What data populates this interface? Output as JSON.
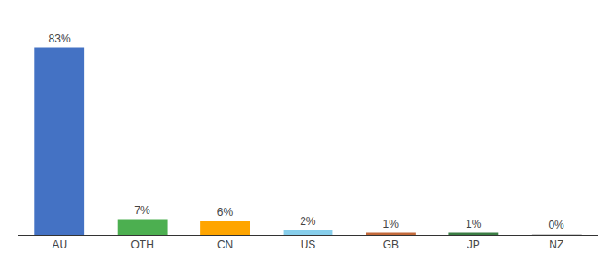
{
  "chart_data": {
    "type": "bar",
    "categories": [
      "AU",
      "OTH",
      "CN",
      "US",
      "GB",
      "JP",
      "NZ"
    ],
    "values": [
      83,
      7,
      6,
      2,
      1,
      1,
      0.3
    ],
    "value_labels": [
      "83%",
      "7%",
      "6%",
      "2%",
      "1%",
      "1%",
      "0%"
    ],
    "colors": [
      "#4472C4",
      "#4CAF50",
      "#FFA500",
      "#87CEEB",
      "#C2693A",
      "#3A7D44",
      "#CCCCCC"
    ],
    "ylim": [
      0,
      92
    ],
    "data_labels": true,
    "tick_labels": "x",
    "grid": false
  }
}
